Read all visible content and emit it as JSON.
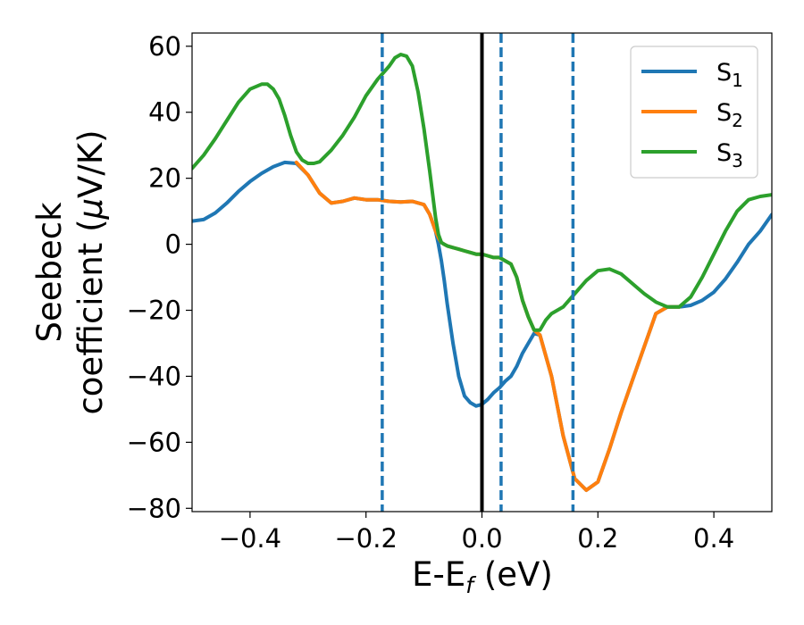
{
  "chart_data": {
    "type": "line",
    "xlabel_main": "E-E",
    "xlabel_sub": "f",
    "xlabel_unit": " (eV)",
    "ylabel_line1": "Seebeck",
    "ylabel_line2_text": "coefficient  (",
    "ylabel_mu": "μ",
    "ylabel_unit": "V/K)",
    "xlim": [
      -0.5,
      0.5
    ],
    "ylim": [
      -81,
      64
    ],
    "xticks": [
      -0.4,
      -0.2,
      0.0,
      0.2,
      0.4
    ],
    "xtick_labels": [
      "−0.4",
      "−0.2",
      "0.0",
      "0.2",
      "0.4"
    ],
    "yticks": [
      60,
      40,
      20,
      0,
      -20,
      -40,
      -60,
      -80
    ],
    "ytick_labels": [
      "60",
      "40",
      "20",
      "0",
      "−20",
      "−40",
      "−60",
      "−80"
    ],
    "grid": false,
    "legend_position": "top-right",
    "vertical_lines": [
      {
        "x": -0.172,
        "style": "dashed",
        "color": "#1f77b4"
      },
      {
        "x": 0.0,
        "style": "solid",
        "color": "#000000"
      },
      {
        "x": 0.033,
        "style": "dashed",
        "color": "#1f77b4"
      },
      {
        "x": 0.157,
        "style": "dashed",
        "color": "#1f77b4"
      }
    ],
    "series": [
      {
        "name": "S",
        "sub": "1",
        "color": "#1f77b4",
        "x": [
          -0.5,
          -0.48,
          -0.46,
          -0.44,
          -0.42,
          -0.4,
          -0.38,
          -0.36,
          -0.34,
          -0.32,
          -0.3,
          -0.28,
          -0.26,
          -0.24,
          -0.22,
          -0.2,
          -0.18,
          -0.16,
          -0.14,
          -0.12,
          -0.1,
          -0.09,
          -0.08,
          -0.075,
          -0.07,
          -0.065,
          -0.06,
          -0.05,
          -0.04,
          -0.03,
          -0.02,
          -0.01,
          0.0,
          0.01,
          0.02,
          0.03,
          0.04,
          0.05,
          0.06,
          0.07,
          0.08,
          0.09,
          0.1,
          0.12,
          0.14,
          0.16,
          0.18,
          0.2,
          0.22,
          0.24,
          0.26,
          0.28,
          0.3,
          0.32,
          0.34,
          0.36,
          0.38,
          0.4,
          0.42,
          0.44,
          0.46,
          0.48,
          0.5
        ],
        "y": [
          7,
          7.5,
          9.5,
          12.5,
          16,
          19,
          21.5,
          23.5,
          24.8,
          24.5,
          21,
          15.5,
          12.5,
          13,
          14,
          13.5,
          13.5,
          13,
          12.8,
          13,
          12,
          9,
          4,
          0,
          -5,
          -11,
          -18,
          -30,
          -40,
          -46,
          -48,
          -49,
          -48.5,
          -47,
          -45,
          -43.5,
          -41.5,
          -40,
          -37,
          -33,
          -30,
          -27,
          -27.5,
          -40,
          -58,
          -71,
          -74.5,
          -72,
          -62,
          -51,
          -41,
          -31,
          -21,
          -19,
          -19,
          -18.5,
          -17,
          -14.5,
          -10.5,
          -5.5,
          0,
          4,
          9
        ]
      },
      {
        "name": "S",
        "sub": "2",
        "color": "#ff7f0e",
        "x": [
          -0.32,
          -0.3,
          -0.28,
          -0.26,
          -0.24,
          -0.22,
          -0.2,
          -0.18,
          -0.16,
          -0.14,
          -0.12,
          -0.1,
          -0.09,
          -0.08,
          -0.075,
          -0.07,
          -0.065,
          -0.06,
          -0.05,
          -0.04,
          -0.03,
          -0.02,
          -0.01,
          0.0,
          0.01,
          0.02,
          0.03,
          0.04,
          0.05,
          0.06,
          0.07,
          0.08,
          0.09,
          0.1,
          0.12,
          0.14,
          0.16,
          0.18,
          0.2,
          0.22,
          0.24,
          0.26,
          0.28,
          0.3,
          0.32,
          0.34
        ],
        "y": [
          24.8,
          21,
          15.5,
          12.5,
          13,
          14,
          13.5,
          13.5,
          13,
          12.8,
          13,
          12,
          9,
          4,
          2,
          0.5,
          0,
          -0.5,
          -1,
          -1.5,
          -2,
          -2.5,
          -3,
          -3,
          -3.5,
          -4,
          -4,
          -5,
          -6,
          -10,
          -17,
          -22,
          -26,
          -27.5,
          -40,
          -58,
          -71,
          -74.5,
          -72,
          -62,
          -51,
          -41,
          -31,
          -21,
          -19,
          -19
        ]
      },
      {
        "name": "S",
        "sub": "3",
        "color": "#2ca02c",
        "x": [
          -0.5,
          -0.48,
          -0.46,
          -0.44,
          -0.42,
          -0.4,
          -0.38,
          -0.37,
          -0.36,
          -0.35,
          -0.34,
          -0.33,
          -0.32,
          -0.31,
          -0.3,
          -0.29,
          -0.28,
          -0.26,
          -0.24,
          -0.22,
          -0.2,
          -0.18,
          -0.16,
          -0.15,
          -0.14,
          -0.13,
          -0.12,
          -0.11,
          -0.1,
          -0.09,
          -0.08,
          -0.075,
          -0.07,
          -0.065,
          -0.06,
          -0.05,
          -0.04,
          -0.03,
          -0.02,
          -0.01,
          0.0,
          0.01,
          0.02,
          0.03,
          0.04,
          0.05,
          0.06,
          0.07,
          0.08,
          0.09,
          0.1,
          0.11,
          0.12,
          0.14,
          0.16,
          0.18,
          0.2,
          0.22,
          0.24,
          0.26,
          0.28,
          0.3,
          0.32,
          0.34,
          0.36,
          0.38,
          0.4,
          0.42,
          0.44,
          0.46,
          0.48,
          0.5
        ],
        "y": [
          23,
          27,
          32,
          37.5,
          43,
          47,
          48.5,
          48.5,
          47,
          44,
          39,
          33,
          28,
          25.5,
          24.5,
          24.5,
          25,
          28.5,
          33,
          38.5,
          45,
          50,
          54,
          56.5,
          57.5,
          57,
          54,
          46,
          35,
          22,
          8,
          3,
          0.5,
          0,
          -0.5,
          -1,
          -1.5,
          -2,
          -2.5,
          -3,
          -3,
          -3.5,
          -4,
          -4,
          -5,
          -6,
          -10,
          -17,
          -22,
          -26,
          -26,
          -23,
          -21,
          -19,
          -15,
          -11,
          -8,
          -7.5,
          -9,
          -12,
          -15,
          -17.5,
          -19,
          -19,
          -16,
          -10,
          -3,
          4,
          10,
          13.5,
          14.5,
          15
        ]
      }
    ]
  }
}
